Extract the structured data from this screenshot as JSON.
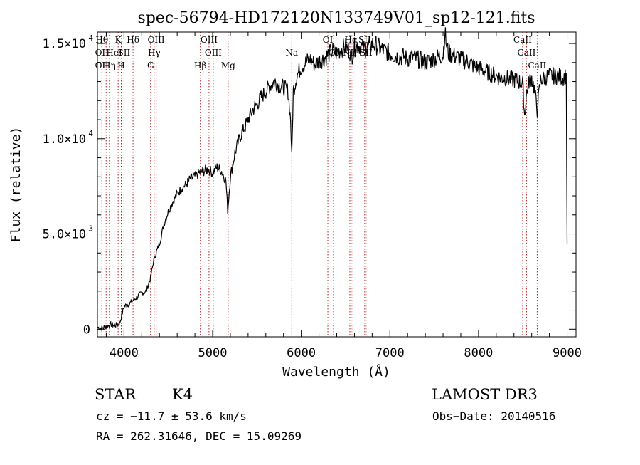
{
  "chart_data": {
    "type": "line",
    "title": "spec-56794-HD172120N133749V01_sp12-121.fits",
    "xlabel": "Wavelength (Å)",
    "ylabel": "Flux (relative)",
    "xlim": [
      3700,
      9100
    ],
    "ylim": [
      -400,
      15600
    ],
    "x_ticks": [
      4000,
      5000,
      6000,
      7000,
      8000,
      9000
    ],
    "x_tick_labels": [
      "4000",
      "5000",
      "6000",
      "7000",
      "8000",
      "9000"
    ],
    "y_ticks": [
      0,
      5000,
      10000,
      15000
    ],
    "y_tick_mantissa": [
      "0",
      "5.0×10",
      "1.0×10",
      "1.5×10"
    ],
    "y_tick_exponent": [
      "",
      "3",
      "4",
      "4"
    ],
    "grid": false,
    "series": [
      {
        "x": [
          3700,
          3750,
          3800,
          3850,
          3900,
          3950,
          4000,
          4050,
          4100,
          4150,
          4200,
          4250,
          4300,
          4330,
          4360,
          4400,
          4450,
          4500,
          4550,
          4600,
          4650,
          4700,
          4750,
          4800,
          4850,
          4900,
          4950,
          5000,
          5050,
          5100,
          5150,
          5170,
          5200,
          5250,
          5300,
          5350,
          5400,
          5450,
          5500,
          5550,
          5600,
          5650,
          5700,
          5750,
          5800,
          5850,
          5880,
          5893,
          5910,
          5950,
          6000,
          6050,
          6100,
          6150,
          6200,
          6250,
          6300,
          6350,
          6400,
          6450,
          6500,
          6550,
          6563,
          6600,
          6650,
          6700,
          6750,
          6800,
          6850,
          6900,
          6950,
          7000,
          7050,
          7100,
          7150,
          7200,
          7250,
          7300,
          7350,
          7400,
          7450,
          7500,
          7550,
          7600,
          7620,
          7640,
          7660,
          7700,
          7750,
          7800,
          7850,
          7900,
          7950,
          8000,
          8050,
          8100,
          8150,
          8200,
          8250,
          8300,
          8350,
          8400,
          8450,
          8498,
          8520,
          8542,
          8570,
          8600,
          8630,
          8662,
          8700,
          8750,
          8800,
          8850,
          8900,
          8950,
          8990,
          9000
        ],
        "y": [
          100,
          50,
          150,
          250,
          200,
          300,
          1200,
          1300,
          1500,
          1700,
          1900,
          2000,
          2700,
          3500,
          4000,
          4500,
          5500,
          6200,
          6700,
          7100,
          7400,
          7600,
          7900,
          8000,
          8200,
          8300,
          8400,
          8200,
          8500,
          8300,
          7800,
          6200,
          8000,
          9200,
          10000,
          10500,
          11000,
          11500,
          11800,
          12200,
          12500,
          12800,
          13000,
          12800,
          12700,
          12500,
          11000,
          9000,
          12500,
          13300,
          13800,
          14000,
          14200,
          13900,
          14100,
          14200,
          14400,
          14600,
          14500,
          14700,
          14800,
          14600,
          14200,
          14800,
          14900,
          14700,
          14800,
          15000,
          14900,
          14700,
          14600,
          14500,
          14400,
          14300,
          14300,
          14200,
          14300,
          14200,
          14100,
          14000,
          14100,
          14200,
          14300,
          14400,
          15600,
          14900,
          14500,
          14400,
          14300,
          14200,
          14100,
          14000,
          13800,
          13700,
          13600,
          13500,
          13400,
          13300,
          13200,
          13200,
          13100,
          13100,
          13000,
          12900,
          11200,
          12400,
          13000,
          13200,
          12600,
          11500,
          13100,
          13200,
          13300,
          13300,
          13300,
          13200,
          13300,
          4500
        ]
      }
    ],
    "line_markers": [
      {
        "w": 3750,
        "labels": [
          "Hθ",
          "OII",
          "OII"
        ]
      },
      {
        "w": 3798,
        "labels": [
          "",
          "",
          ""
        ]
      },
      {
        "w": 3835,
        "labels": [
          "",
          "",
          "Hη"
        ]
      },
      {
        "w": 3889,
        "labels": [
          "",
          "HeI",
          ""
        ]
      },
      {
        "w": 3934,
        "labels": [
          "K",
          "",
          ""
        ]
      },
      {
        "w": 3969,
        "labels": [
          "",
          "",
          "H"
        ]
      },
      {
        "w": 4000,
        "labels": [
          "",
          "SII",
          ""
        ]
      },
      {
        "w": 4102,
        "labels": [
          "Hδ",
          "",
          ""
        ]
      },
      {
        "w": 4300,
        "labels": [
          "",
          "",
          "G"
        ]
      },
      {
        "w": 4340,
        "labels": [
          "",
          "Hγ",
          ""
        ]
      },
      {
        "w": 4363,
        "labels": [
          "OIII",
          "",
          ""
        ]
      },
      {
        "w": 4861,
        "labels": [
          "",
          "",
          "Hβ"
        ]
      },
      {
        "w": 4959,
        "labels": [
          "OIII",
          "",
          ""
        ]
      },
      {
        "w": 5007,
        "labels": [
          "",
          "OIII",
          ""
        ]
      },
      {
        "w": 5175,
        "labels": [
          "",
          "",
          "Mg"
        ]
      },
      {
        "w": 5893,
        "labels": [
          "",
          "Na",
          ""
        ]
      },
      {
        "w": 6300,
        "labels": [
          "OI",
          "",
          ""
        ]
      },
      {
        "w": 6364,
        "labels": [
          "",
          "OI",
          ""
        ]
      },
      {
        "w": 6548,
        "labels": [
          "",
          "NII",
          ""
        ]
      },
      {
        "w": 6563,
        "labels": [
          "Hα",
          "",
          ""
        ]
      },
      {
        "w": 6583,
        "labels": [
          "",
          "",
          ""
        ]
      },
      {
        "w": 6716,
        "labels": [
          "SII",
          "",
          ""
        ]
      },
      {
        "w": 6731,
        "labels": [
          "",
          "SII",
          ""
        ]
      },
      {
        "w": 8498,
        "labels": [
          "CaII",
          "",
          ""
        ]
      },
      {
        "w": 8542,
        "labels": [
          "",
          "CaII",
          ""
        ]
      },
      {
        "w": 8662,
        "labels": [
          "",
          "",
          "CaII"
        ]
      }
    ]
  },
  "info": {
    "object_class": "STAR",
    "subclass": "K4",
    "survey": "LAMOST DR3",
    "redshift": "cz = −11.7 ± 53.6 km/s",
    "obs_date": "Obs−Date: 20140516",
    "coords": "RA = 262.31646, DEC =  15.09269"
  }
}
